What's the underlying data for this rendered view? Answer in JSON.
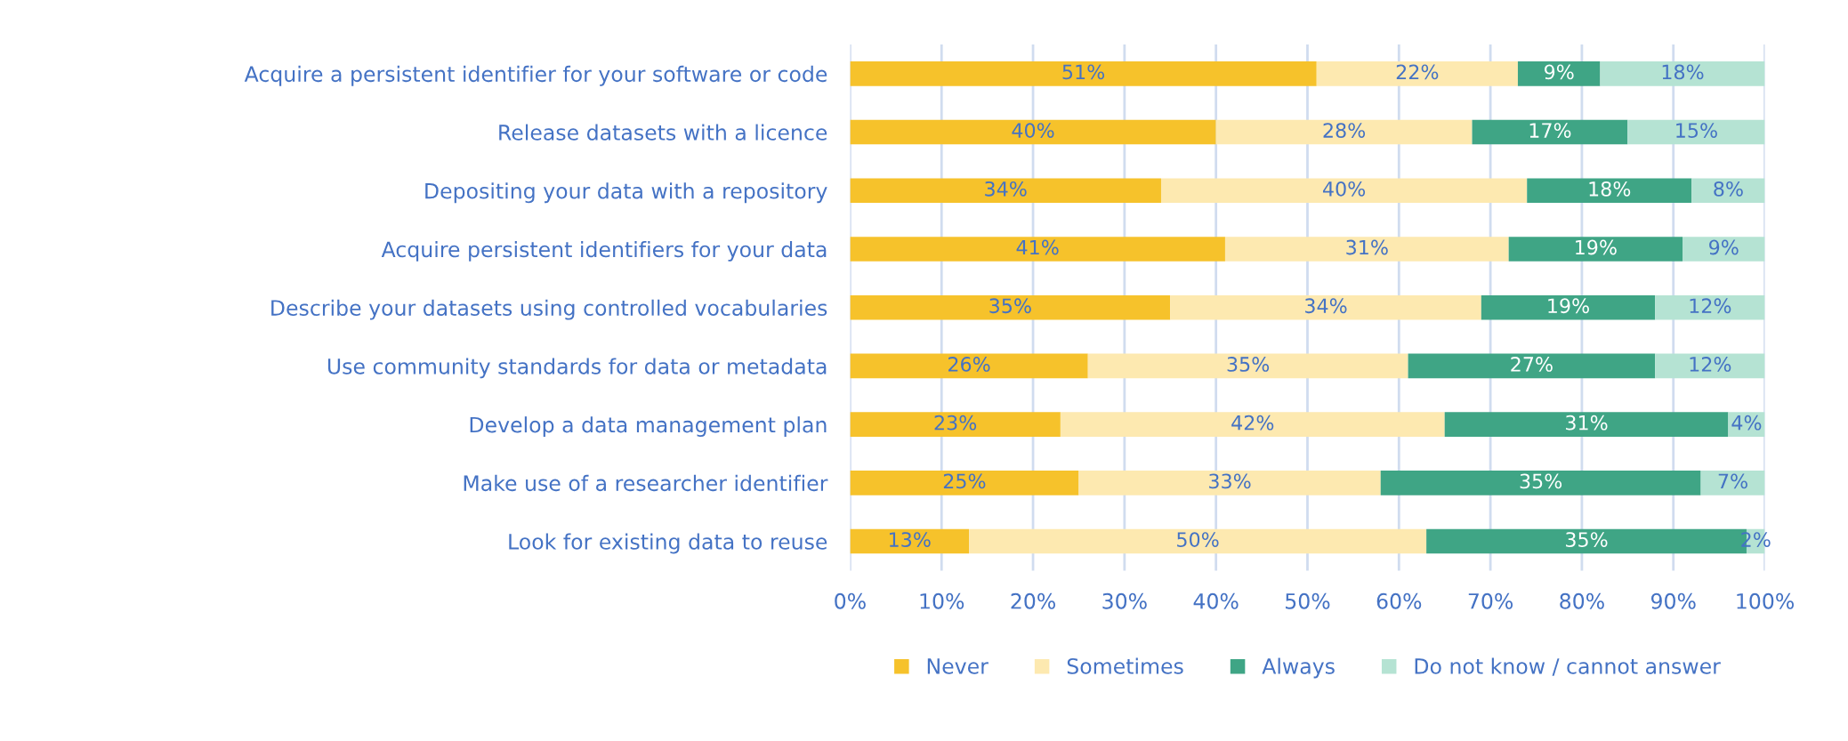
{
  "chart_data": {
    "type": "bar",
    "orientation": "horizontal",
    "stacked": true,
    "categories": [
      "Acquire a persistent identifier for your software or code",
      "Release datasets with a licence",
      "Depositing your data with a repository",
      "Acquire persistent identifiers for your data",
      "Describe your datasets using controlled vocabularies",
      "Use community standards for data or metadata",
      "Develop a data management plan",
      "Make use of a researcher identifier",
      "Look for existing data to reuse"
    ],
    "series": [
      {
        "name": "Never",
        "color": "#f6c22b",
        "values": [
          51,
          40,
          34,
          41,
          35,
          26,
          23,
          25,
          13
        ],
        "value_labels": [
          "51%",
          "40%",
          "34%",
          "41%",
          "35%",
          "26%",
          "23%",
          "25%",
          "13%"
        ]
      },
      {
        "name": "Sometimes",
        "color": "#fde9b0",
        "values": [
          22,
          28,
          40,
          31,
          34,
          35,
          42,
          33,
          50
        ],
        "value_labels": [
          "22%",
          "28%",
          "40%",
          "31%",
          "34%",
          "35%",
          "42%",
          "33%",
          "50%"
        ]
      },
      {
        "name": "Always",
        "color": "#3fa585",
        "values": [
          9,
          17,
          18,
          19,
          19,
          27,
          31,
          35,
          35
        ],
        "value_labels": [
          "9%",
          "17%",
          "18%",
          "19%",
          "19%",
          "27%",
          "31%",
          "35%",
          "35%"
        ]
      },
      {
        "name": "Do not know / cannot answer",
        "color": "#b5e3d3",
        "values": [
          18,
          15,
          8,
          9,
          12,
          12,
          4,
          7,
          2
        ],
        "value_labels": [
          "18%",
          "15%",
          "8%",
          "9%",
          "12%",
          "12%",
          "4%",
          "7%",
          "2%"
        ]
      }
    ],
    "xlim": [
      0,
      100
    ],
    "xticks": [
      {
        "value": 0,
        "label": "0%"
      },
      {
        "value": 10,
        "label": "10%"
      },
      {
        "value": 20,
        "label": "20%"
      },
      {
        "value": 30,
        "label": "30%"
      },
      {
        "value": 40,
        "label": "40%"
      },
      {
        "value": 50,
        "label": "50%"
      },
      {
        "value": 60,
        "label": "60%"
      },
      {
        "value": 70,
        "label": "70%"
      },
      {
        "value": 80,
        "label": "80%"
      },
      {
        "value": 90,
        "label": "90%"
      },
      {
        "value": 100,
        "label": "100%"
      }
    ],
    "grid": "x",
    "legend": "bottom"
  }
}
